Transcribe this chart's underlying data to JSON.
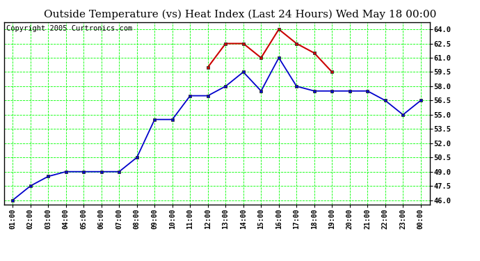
{
  "title": "Outside Temperature (vs) Heat Index (Last 24 Hours) Wed May 18 00:00",
  "copyright": "Copyright 2005 Curtronics.com",
  "x_labels": [
    "01:00",
    "02:00",
    "03:00",
    "04:00",
    "05:00",
    "06:00",
    "07:00",
    "08:00",
    "09:00",
    "10:00",
    "11:00",
    "12:00",
    "13:00",
    "14:00",
    "15:00",
    "16:00",
    "17:00",
    "18:00",
    "19:00",
    "20:00",
    "21:00",
    "22:00",
    "23:00",
    "00:00"
  ],
  "blue_data": [
    46.0,
    47.5,
    48.5,
    49.0,
    49.0,
    49.0,
    49.0,
    50.5,
    54.5,
    54.5,
    57.0,
    57.0,
    58.0,
    59.5,
    57.5,
    61.0,
    58.0,
    57.5,
    57.5,
    57.5,
    57.5,
    56.5,
    55.0,
    56.5
  ],
  "red_data": [
    null,
    null,
    null,
    null,
    null,
    null,
    null,
    null,
    null,
    null,
    null,
    60.0,
    62.5,
    62.5,
    61.0,
    64.0,
    62.5,
    61.5,
    59.5,
    null,
    null,
    null,
    null,
    null
  ],
  "ylim": [
    45.5,
    64.75
  ],
  "yticks": [
    46.0,
    47.5,
    49.0,
    50.5,
    52.0,
    53.5,
    55.0,
    56.5,
    58.0,
    59.5,
    61.0,
    62.5,
    64.0
  ],
  "bg_color": "#ffffff",
  "plot_bg_color": "#ffffff",
  "grid_color": "#00ff00",
  "blue_color": "#0000cc",
  "red_color": "#cc0000",
  "title_fontsize": 11,
  "copyright_fontsize": 7.5
}
